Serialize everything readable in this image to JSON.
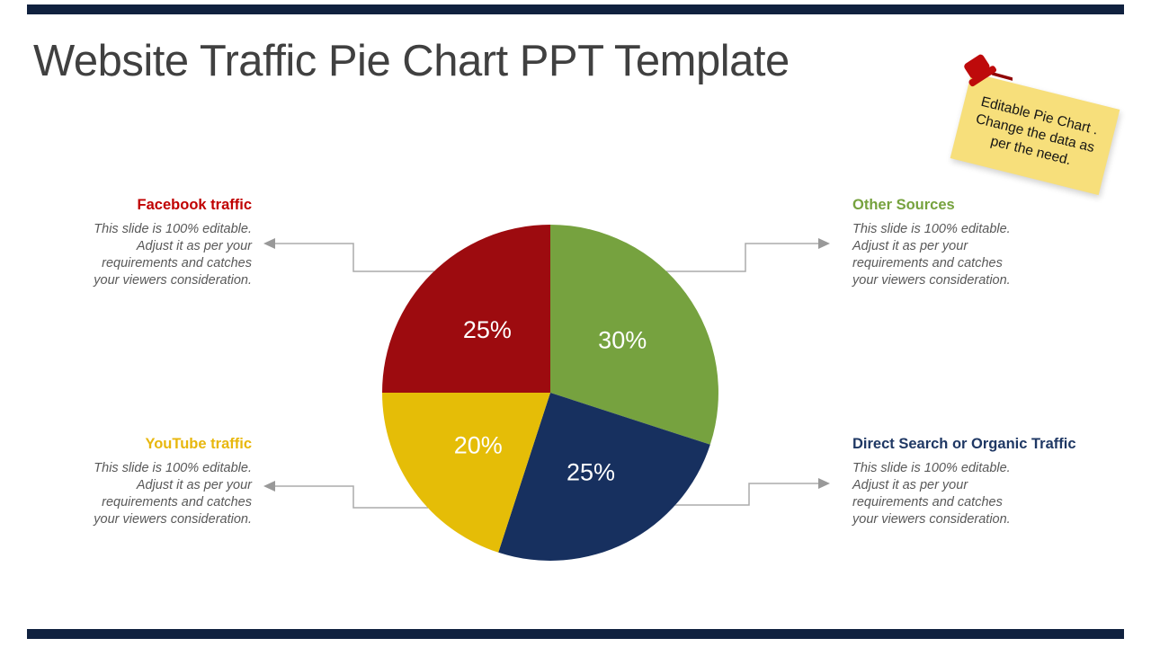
{
  "header": {
    "title": "Website Traffic Pie Chart PPT Template"
  },
  "sticky_note": {
    "lines": [
      "Editable Pie Chart .",
      "Change the data as",
      "per the need."
    ]
  },
  "callouts": [
    {
      "title": "Facebook traffic",
      "color": "#C00000"
    },
    {
      "title": "Other Sources",
      "color": "#76A23E"
    },
    {
      "title": "YouTube traffic",
      "color": "#E8B70D"
    },
    {
      "title": "Direct Search or Organic Traffic",
      "color": "#1F3864"
    }
  ],
  "callout_description_lines": [
    "This slide is 100% editable.",
    "Adjust it as per your",
    "requirements and catches",
    "your viewers consideration."
  ],
  "chart_data": {
    "type": "pie",
    "title": "Website Traffic Pie Chart PPT Template",
    "direction": "clockwise",
    "start_angle_deg": 0,
    "center": [
      612,
      437
    ],
    "radius": 187,
    "label_radius_ratio": 0.53,
    "segments": [
      {
        "label": "Other Sources",
        "value": 30,
        "display": "30%",
        "color": "#76A23F"
      },
      {
        "label": "Direct Search or Organic Traffic",
        "value": 25,
        "display": "25%",
        "color": "#17305F"
      },
      {
        "label": "YouTube traffic",
        "value": 20,
        "display": "20%",
        "color": "#E5BD07"
      },
      {
        "label": "Facebook traffic",
        "value": 25,
        "display": "25%",
        "color": "#9D0B0F"
      }
    ]
  },
  "colors": {
    "title": "#404040",
    "body": "#595959",
    "connector": "#ABABAB",
    "arrow": "#999999",
    "bar": "#10213F",
    "note_bg": "#F7DF7B",
    "pin": "#BE0A0B",
    "pin_dark": "#8F0505"
  }
}
